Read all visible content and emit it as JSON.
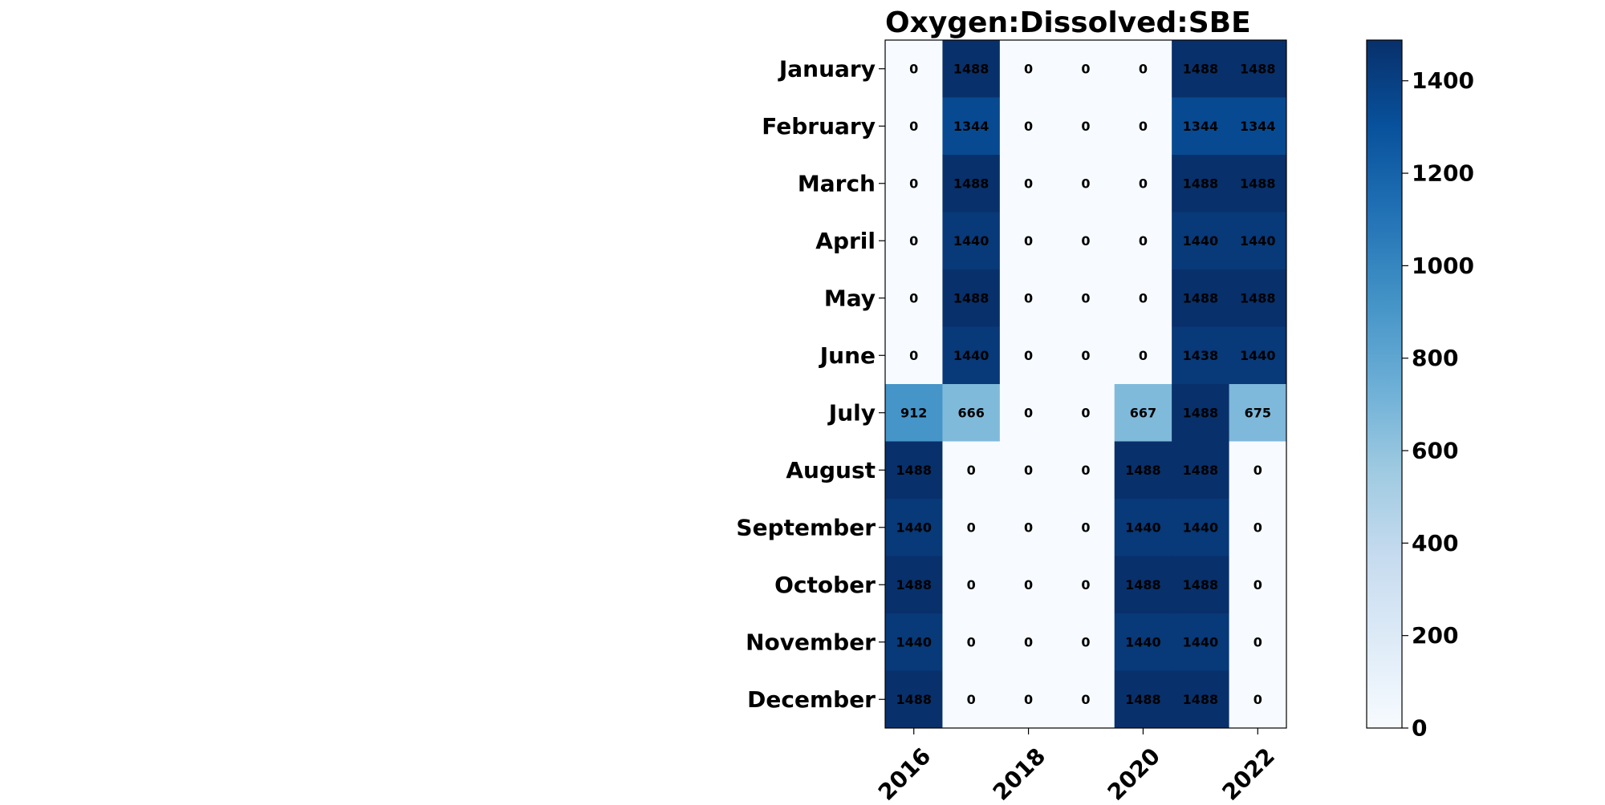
{
  "chart_data": {
    "type": "heatmap",
    "title": "Oxygen:Dissolved:SBE",
    "xlabel": "",
    "ylabel": "",
    "x": [
      2016,
      2017,
      2018,
      2019,
      2020,
      2021,
      2022
    ],
    "x_tick_labels": [
      "2016",
      "2018",
      "2020",
      "2022"
    ],
    "y_categories": [
      "January",
      "February",
      "March",
      "April",
      "May",
      "June",
      "July",
      "August",
      "September",
      "October",
      "November",
      "December"
    ],
    "values": [
      [
        0,
        1488,
        0,
        0,
        0,
        1488,
        1488
      ],
      [
        0,
        1344,
        0,
        0,
        0,
        1344,
        1344
      ],
      [
        0,
        1488,
        0,
        0,
        0,
        1488,
        1488
      ],
      [
        0,
        1440,
        0,
        0,
        0,
        1440,
        1440
      ],
      [
        0,
        1488,
        0,
        0,
        0,
        1488,
        1488
      ],
      [
        0,
        1440,
        0,
        0,
        0,
        1438,
        1440
      ],
      [
        912,
        666,
        0,
        0,
        667,
        1488,
        675
      ],
      [
        1488,
        0,
        0,
        0,
        1488,
        1488,
        0
      ],
      [
        1440,
        0,
        0,
        0,
        1440,
        1440,
        0
      ],
      [
        1488,
        0,
        0,
        0,
        1488,
        1488,
        0
      ],
      [
        1440,
        0,
        0,
        0,
        1440,
        1440,
        0
      ],
      [
        1488,
        0,
        0,
        0,
        1488,
        1488,
        0
      ]
    ],
    "colormap": "Blues",
    "vmin": 0,
    "vmax": 1488,
    "colorbar_ticks": [
      0,
      200,
      400,
      600,
      800,
      1000,
      1200,
      1400
    ],
    "grid": false,
    "annotations": "cell values"
  }
}
